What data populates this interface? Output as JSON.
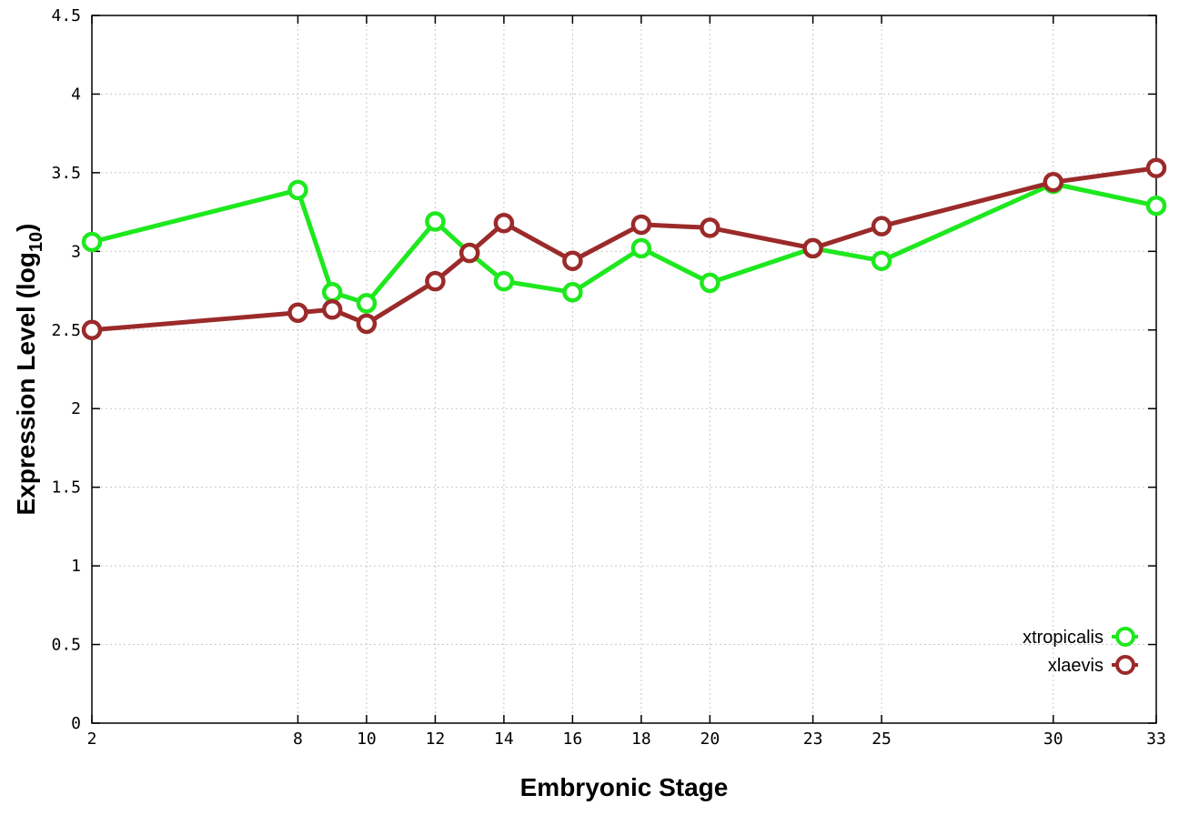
{
  "chart_data": {
    "type": "line",
    "xlabel": "Embryonic Stage",
    "ylabel_main": "Expression Level (log",
    "ylabel_sub": "10",
    "ylabel_close": ")",
    "x_ticks": [
      2,
      8,
      10,
      12,
      14,
      16,
      18,
      20,
      23,
      25,
      30,
      33
    ],
    "x_tick_labels": [
      "2",
      "8",
      "10",
      "12",
      "14",
      "16",
      "18",
      "20",
      "23",
      "25",
      "30",
      "33"
    ],
    "y_ticks": [
      0,
      0.5,
      1,
      1.5,
      2,
      2.5,
      3,
      3.5,
      4,
      4.5
    ],
    "y_tick_labels": [
      "0",
      "0.5",
      "1",
      "1.5",
      "2",
      "2.5",
      "3",
      "3.5",
      "4",
      "4.5"
    ],
    "xlim": [
      2,
      33
    ],
    "ylim": [
      0,
      4.5
    ],
    "grid": true,
    "legend_position": "bottom-right",
    "x": [
      2,
      8,
      9,
      10,
      12,
      13,
      14,
      16,
      18,
      20,
      23,
      25,
      30,
      33
    ],
    "series": [
      {
        "name": "xtropicalis",
        "color": "#1ee81e",
        "values": [
          3.06,
          3.39,
          2.74,
          2.67,
          3.19,
          2.99,
          2.81,
          2.74,
          3.02,
          2.8,
          3.02,
          2.94,
          3.43,
          3.29
        ]
      },
      {
        "name": "xlaevis",
        "color": "#9b2a2a",
        "values": [
          2.5,
          2.61,
          2.63,
          2.54,
          2.81,
          2.99,
          3.18,
          2.94,
          3.17,
          3.15,
          3.02,
          3.16,
          3.44,
          3.53
        ]
      }
    ]
  }
}
